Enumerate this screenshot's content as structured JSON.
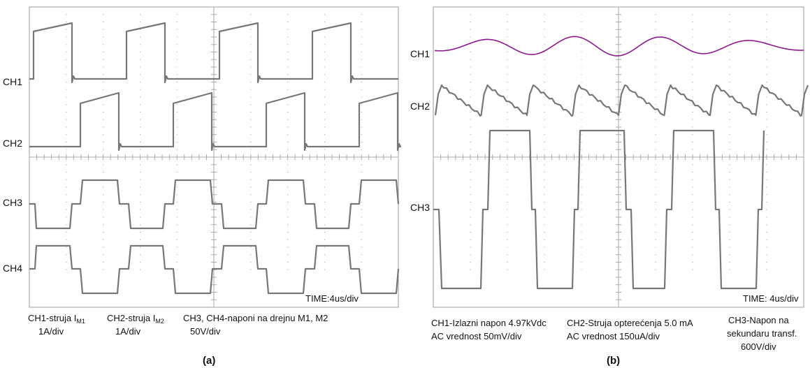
{
  "panels": [
    {
      "label": "(a)",
      "channels": [
        "CH1",
        "CH2",
        "CH3",
        "CH4"
      ],
      "time": "TIME:4us/div",
      "captions": [
        {
          "text": "CH1-struja I",
          "subscript": "M1",
          "scale": "1A/div"
        },
        {
          "text": "CH2-struja I",
          "subscript": "M2",
          "scale": "1A/div"
        },
        {
          "text": "CH3, CH4-naponi na drejnu M1, M2",
          "scale": "50V/div"
        }
      ]
    },
    {
      "label": "(b)",
      "channels": [
        "CH1",
        "CH2",
        "CH3"
      ],
      "time": "TIME: 4us/div",
      "captions": [
        {
          "lines": [
            "CH1-Izlazni napon 4.97kVdc",
            "AC vrednost  50mV/div"
          ]
        },
        {
          "lines": [
            "CH2-Struja opterećenja 5.0 mA",
            "AC vrednost 150uA/div"
          ]
        },
        {
          "lines": [
            "CH3-Napon na",
            "sekundaru transf.",
            "600V/div"
          ]
        }
      ]
    }
  ]
}
